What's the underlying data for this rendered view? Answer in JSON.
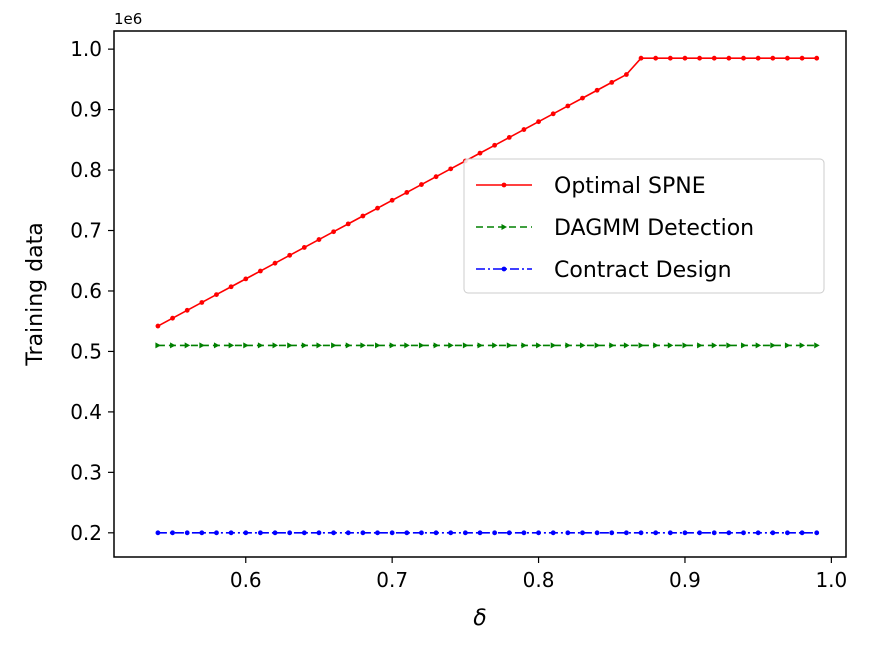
{
  "chart_data": {
    "type": "line",
    "xlabel": "δ",
    "ylabel": "Training data",
    "y_offset_label": "1e6",
    "xlim": [
      0.51,
      1.01
    ],
    "ylim": [
      0.16,
      1.03
    ],
    "xticks": [
      0.6,
      0.7,
      0.8,
      0.9,
      1.0
    ],
    "xtick_labels": [
      "0.6",
      "0.7",
      "0.8",
      "0.9",
      "1.0"
    ],
    "yticks": [
      0.2,
      0.3,
      0.4,
      0.5,
      0.6,
      0.7,
      0.8,
      0.9,
      1.0
    ],
    "ytick_labels": [
      "0.2",
      "0.3",
      "0.4",
      "0.5",
      "0.6",
      "0.7",
      "0.8",
      "0.9",
      "1.0"
    ],
    "grid": false,
    "legend_position": "center-right",
    "x": [
      0.54,
      0.55,
      0.56,
      0.57,
      0.58,
      0.59,
      0.6,
      0.61,
      0.62,
      0.63,
      0.64,
      0.65,
      0.66,
      0.67,
      0.68,
      0.69,
      0.7,
      0.71,
      0.72,
      0.73,
      0.74,
      0.75,
      0.76,
      0.77,
      0.78,
      0.79,
      0.8,
      0.81,
      0.82,
      0.83,
      0.84,
      0.85,
      0.86,
      0.87,
      0.88,
      0.89,
      0.9,
      0.91,
      0.92,
      0.93,
      0.94,
      0.95,
      0.96,
      0.97,
      0.98,
      0.99
    ],
    "series": [
      {
        "name": "Optimal SPNE",
        "color": "#ff0000",
        "linestyle": "solid",
        "marker": "dot",
        "values": [
          0.542,
          0.555,
          0.568,
          0.581,
          0.594,
          0.607,
          0.62,
          0.633,
          0.646,
          0.659,
          0.672,
          0.685,
          0.698,
          0.711,
          0.724,
          0.737,
          0.75,
          0.763,
          0.776,
          0.789,
          0.802,
          0.815,
          0.828,
          0.841,
          0.854,
          0.867,
          0.88,
          0.893,
          0.906,
          0.919,
          0.932,
          0.945,
          0.958,
          0.985,
          0.985,
          0.985,
          0.985,
          0.985,
          0.985,
          0.985,
          0.985,
          0.985,
          0.985,
          0.985,
          0.985,
          0.985
        ]
      },
      {
        "name": "DAGMM Detection",
        "color": "#008000",
        "linestyle": "dashed",
        "marker": "triangle",
        "values": [
          0.51,
          0.51,
          0.51,
          0.51,
          0.51,
          0.51,
          0.51,
          0.51,
          0.51,
          0.51,
          0.51,
          0.51,
          0.51,
          0.51,
          0.51,
          0.51,
          0.51,
          0.51,
          0.51,
          0.51,
          0.51,
          0.51,
          0.51,
          0.51,
          0.51,
          0.51,
          0.51,
          0.51,
          0.51,
          0.51,
          0.51,
          0.51,
          0.51,
          0.51,
          0.51,
          0.51,
          0.51,
          0.51,
          0.51,
          0.51,
          0.51,
          0.51,
          0.51,
          0.51,
          0.51,
          0.51
        ]
      },
      {
        "name": "Contract Design",
        "color": "#0000ff",
        "linestyle": "dashdot",
        "marker": "dot",
        "values": [
          0.2,
          0.2,
          0.2,
          0.2,
          0.2,
          0.2,
          0.2,
          0.2,
          0.2,
          0.2,
          0.2,
          0.2,
          0.2,
          0.2,
          0.2,
          0.2,
          0.2,
          0.2,
          0.2,
          0.2,
          0.2,
          0.2,
          0.2,
          0.2,
          0.2,
          0.2,
          0.2,
          0.2,
          0.2,
          0.2,
          0.2,
          0.2,
          0.2,
          0.2,
          0.2,
          0.2,
          0.2,
          0.2,
          0.2,
          0.2,
          0.2,
          0.2,
          0.2,
          0.2,
          0.2,
          0.2
        ]
      }
    ]
  }
}
